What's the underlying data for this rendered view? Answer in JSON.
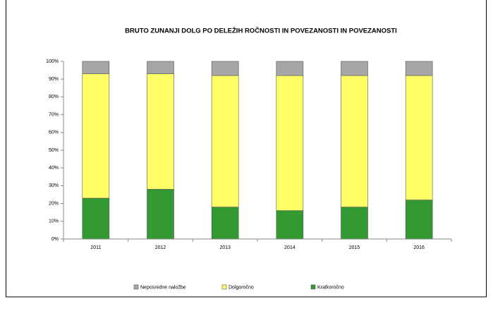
{
  "chart_data": {
    "type": "stacked_bar",
    "title": "BRUTO ZUNANJI DOLG PO DELEŽIH  ROČNOSTI IN POVEZANOSTI  IN POVEZANOSTI",
    "categories": [
      "2011",
      "2012",
      "2013",
      "2014",
      "2015",
      "2016"
    ],
    "series": [
      {
        "name": "Neposredne naložbe",
        "color": "#a6a6a6",
        "values": [
          7,
          7,
          8,
          8,
          8,
          8
        ]
      },
      {
        "name": "Dolgoročno",
        "color": "#ffff66",
        "values": [
          70,
          65,
          74,
          76,
          74,
          70
        ]
      },
      {
        "name": "Kratkoročno",
        "color": "#339933",
        "values": [
          23,
          28,
          18,
          16,
          18,
          22
        ]
      }
    ],
    "ylim": [
      0,
      100
    ],
    "yticks": [
      {
        "value": 0,
        "label": "0%"
      },
      {
        "value": 10,
        "label": "10%"
      },
      {
        "value": 20,
        "label": "20%"
      },
      {
        "value": 30,
        "label": "30%"
      },
      {
        "value": 40,
        "label": "40%"
      },
      {
        "value": 50,
        "label": "50%"
      },
      {
        "value": 60,
        "label": "60%"
      },
      {
        "value": 70,
        "label": "70%"
      },
      {
        "value": 80,
        "label": "80%"
      },
      {
        "value": 90,
        "label": "90%"
      },
      {
        "value": 100,
        "label": "100%"
      }
    ],
    "grid": false,
    "legend": "bottom"
  }
}
